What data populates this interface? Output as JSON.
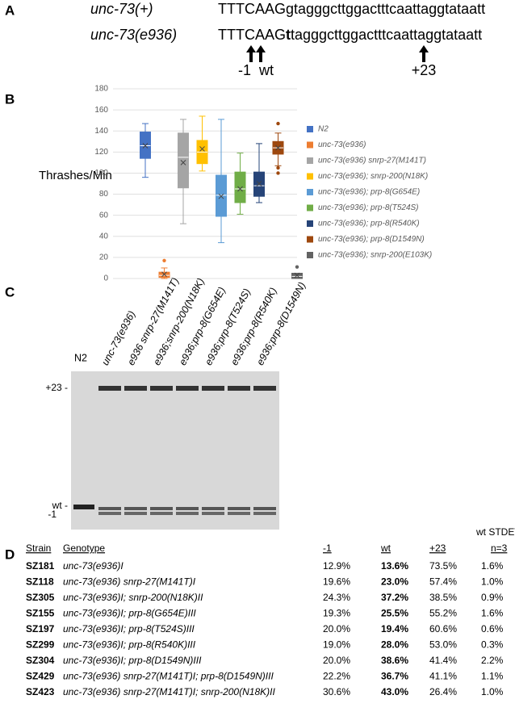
{
  "panel_a": {
    "letter": "A",
    "rows": [
      {
        "label": "unc-73(+)",
        "seq_prefix": "TTTCAAG",
        "seq_bold": "",
        "seq_rest": "gtagggcttggactttcaattaggtataatt"
      },
      {
        "label": "unc-73(e936)",
        "seq_prefix": "TTTCAAG",
        "seq_bold": "t",
        "seq_rest": "tagggcttggactttcaattaggtataatt"
      }
    ],
    "arrow_labels": [
      "-1",
      "wt",
      "+23"
    ]
  },
  "panel_b_letter": "B",
  "chart_data": {
    "type": "box",
    "y_label": "Thrashes/Min",
    "ylim": [
      0,
      180
    ],
    "yticks": [
      0,
      20,
      40,
      60,
      80,
      100,
      120,
      140,
      160,
      180
    ],
    "grid": true,
    "legend": "right",
    "series": [
      {
        "name": "N2",
        "color": "#4472c4",
        "min": 96,
        "q1": 114,
        "median": 126,
        "q3": 139,
        "max": 147,
        "mean": 126,
        "outliers": []
      },
      {
        "name": "unc-73(e936)",
        "color": "#ed7d31",
        "min": 0,
        "q1": 1,
        "median": 3,
        "q3": 6,
        "max": 10,
        "mean": 4,
        "outliers": [
          17
        ]
      },
      {
        "name": "unc-73(e936) snrp-27(M141T)",
        "color": "#a5a5a5",
        "min": 52,
        "q1": 86,
        "median": 115,
        "q3": 138,
        "max": 151,
        "mean": 110,
        "outliers": []
      },
      {
        "name": "unc-73(e936); snrp-200(N18K)",
        "color": "#ffc000",
        "min": 102,
        "q1": 109,
        "median": 120,
        "q3": 131,
        "max": 154,
        "mean": 123,
        "outliers": []
      },
      {
        "name": "unc-73(e936); prp-8(G654E)",
        "color": "#5b9bd5",
        "min": 34,
        "q1": 59,
        "median": 79,
        "q3": 98,
        "max": 151,
        "mean": 78,
        "outliers": []
      },
      {
        "name": "unc-73(e936); prp-8(T524S)",
        "color": "#70ad47",
        "min": 61,
        "q1": 72,
        "median": 85,
        "q3": 101,
        "max": 119,
        "mean": 85,
        "outliers": []
      },
      {
        "name": "unc-73(e936); prp-8(R540K)",
        "color": "#264478",
        "min": 72,
        "q1": 78,
        "median": 88,
        "q3": 101,
        "max": 128,
        "mean": 90,
        "outliers": []
      },
      {
        "name": "unc-73(e936); prp-8(D1549N)",
        "color": "#9e480e",
        "min": 107,
        "q1": 118,
        "median": 124,
        "q3": 130,
        "max": 138,
        "mean": 124,
        "outliers": [
          147,
          105,
          100
        ]
      },
      {
        "name": "unc-73(e936); snrp-200(E103K)",
        "color": "#636363",
        "min": 0,
        "q1": 0,
        "median": 2,
        "q3": 5,
        "max": 5,
        "mean": 3,
        "outliers": [
          11
        ]
      }
    ]
  },
  "panel_c": {
    "letter": "C",
    "lanes": [
      "N2",
      "unc-73(e936)",
      "e936 snrp-27(M141T)",
      "e936;snrp-200(N18K)",
      "e936;prp-8(G654E)",
      "e936;prp-8(T524S)",
      "e936;prp-8(R540K)",
      "e936;prp-8(D1549N)"
    ],
    "band_labels": [
      "+23 -",
      "wt -",
      "-1"
    ]
  },
  "table": {
    "letter": "D",
    "header": [
      "Strain",
      "Genotype",
      "-1",
      "wt",
      "+23",
      "wt STDEV",
      "n=3"
    ],
    "rows": [
      [
        "SZ181",
        "unc-73(e936)I",
        "12.9%",
        "13.6%",
        "73.5%",
        "1.6%"
      ],
      [
        "SZ118",
        "unc-73(e936) snrp-27(M141T)I",
        "19.6%",
        "23.0%",
        "57.4%",
        "1.0%"
      ],
      [
        "SZ305",
        "unc-73(e936)I; snrp-200(N18K)II",
        "24.3%",
        "37.2%",
        "38.5%",
        "0.9%"
      ],
      [
        "SZ155",
        "unc-73(e936)I; prp-8(G654E)III",
        "19.3%",
        "25.5%",
        "55.2%",
        "1.6%"
      ],
      [
        "SZ197",
        "unc-73(e936)I; prp-8(T524S)III",
        "20.0%",
        "19.4%",
        "60.6%",
        "0.6%"
      ],
      [
        "SZ299",
        "unc-73(e936)I; prp-8(R540K)III",
        "19.0%",
        "28.0%",
        "53.0%",
        "0.3%"
      ],
      [
        "SZ304",
        "unc-73(e936)I; prp-8(D1549N)III",
        "20.0%",
        "38.6%",
        "41.4%",
        "2.2%"
      ],
      [
        "SZ429",
        "unc-73(e936) snrp-27(M141T)I; prp-8(D1549N)III",
        "22.2%",
        "36.7%",
        "41.1%",
        "1.1%"
      ],
      [
        "SZ423",
        "unc-73(e936) snrp-27(M141T)I; snrp-200(N18K)II",
        "30.6%",
        "43.0%",
        "26.4%",
        "1.0%"
      ]
    ]
  }
}
